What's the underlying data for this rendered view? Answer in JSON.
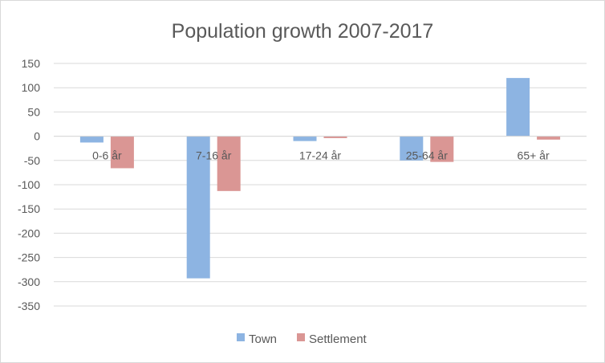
{
  "chart_data": {
    "type": "bar",
    "title": "Population growth 2007-2017",
    "xlabel": "",
    "ylabel": "",
    "categories": [
      "0-6 år",
      "7-16 år",
      "17-24 år",
      "25-64 år",
      "65+ år"
    ],
    "series": [
      {
        "name": "Town",
        "values": [
          -13,
          -293,
          -10,
          -50,
          120
        ],
        "color": "#8db4e2"
      },
      {
        "name": "Settlement",
        "values": [
          -66,
          -113,
          -4,
          -53,
          -7
        ],
        "color": "#da9694"
      }
    ],
    "ylim": [
      -350,
      150
    ],
    "yticks": [
      150,
      100,
      50,
      0,
      -50,
      -100,
      -150,
      -200,
      -250,
      -300,
      -350
    ],
    "ytick_labels": [
      "150",
      "100",
      "50",
      "0",
      "-50",
      "-100",
      "-150",
      "-200",
      "-250",
      "-300",
      "-350"
    ],
    "grid": true,
    "legend_position": "bottom"
  }
}
